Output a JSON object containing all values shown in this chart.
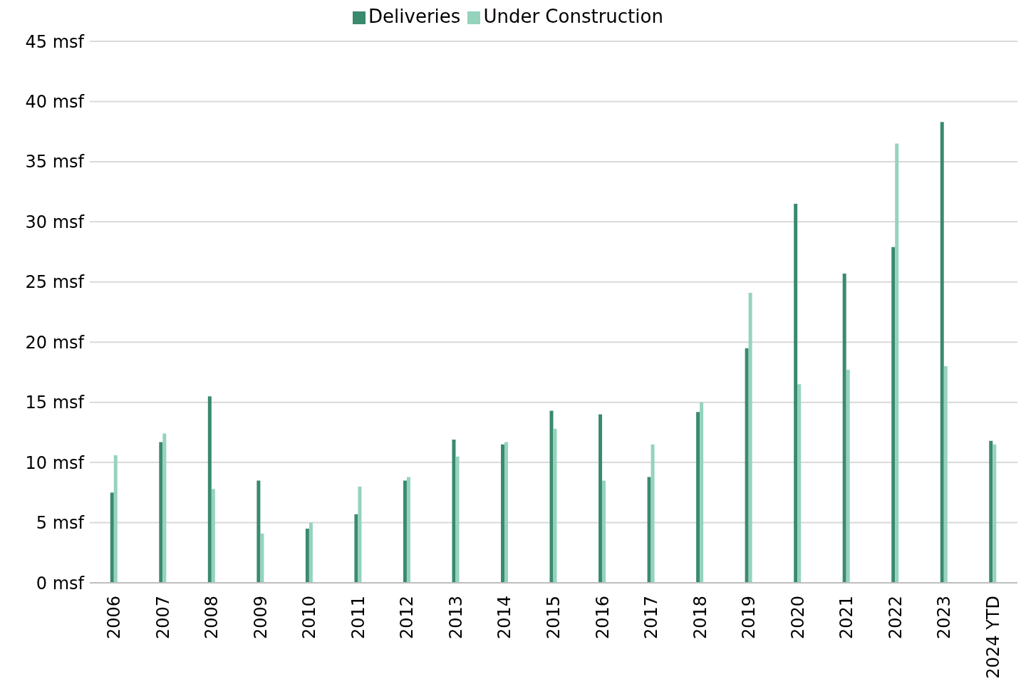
{
  "chart_data": {
    "type": "bar",
    "categories": [
      "2006",
      "2007",
      "2008",
      "2009",
      "2010",
      "2011",
      "2012",
      "2013",
      "2014",
      "2015",
      "2016",
      "2017",
      "2018",
      "2019",
      "2020",
      "2021",
      "2022",
      "2023",
      "2024 YTD"
    ],
    "series": [
      {
        "name": "Deliveries",
        "color": "#3a8a6e",
        "values": [
          7.5,
          11.7,
          15.5,
          8.5,
          4.5,
          5.7,
          8.5,
          11.9,
          11.5,
          14.3,
          14.0,
          8.8,
          14.2,
          19.5,
          31.5,
          25.7,
          27.9,
          38.3,
          11.8
        ]
      },
      {
        "name": "Under Construction",
        "color": "#95d3bd",
        "values": [
          10.6,
          12.4,
          7.8,
          4.1,
          5.0,
          8.0,
          8.8,
          10.5,
          11.7,
          12.8,
          8.5,
          11.5,
          15.0,
          24.1,
          16.5,
          17.7,
          36.5,
          18.0,
          11.5
        ]
      }
    ],
    "ylim": [
      0,
      45
    ],
    "yticks": [
      {
        "value": 0,
        "label": "0 msf"
      },
      {
        "value": 5,
        "label": "5 msf"
      },
      {
        "value": 10,
        "label": "10 msf"
      },
      {
        "value": 15,
        "label": "15 msf"
      },
      {
        "value": 20,
        "label": "20 msf"
      },
      {
        "value": 25,
        "label": "25 msf"
      },
      {
        "value": 30,
        "label": "30 msf"
      },
      {
        "value": 35,
        "label": "35 msf"
      },
      {
        "value": 40,
        "label": "40 msf"
      },
      {
        "value": 45,
        "label": "45 msf"
      }
    ],
    "grid": "y",
    "legend": "top"
  }
}
